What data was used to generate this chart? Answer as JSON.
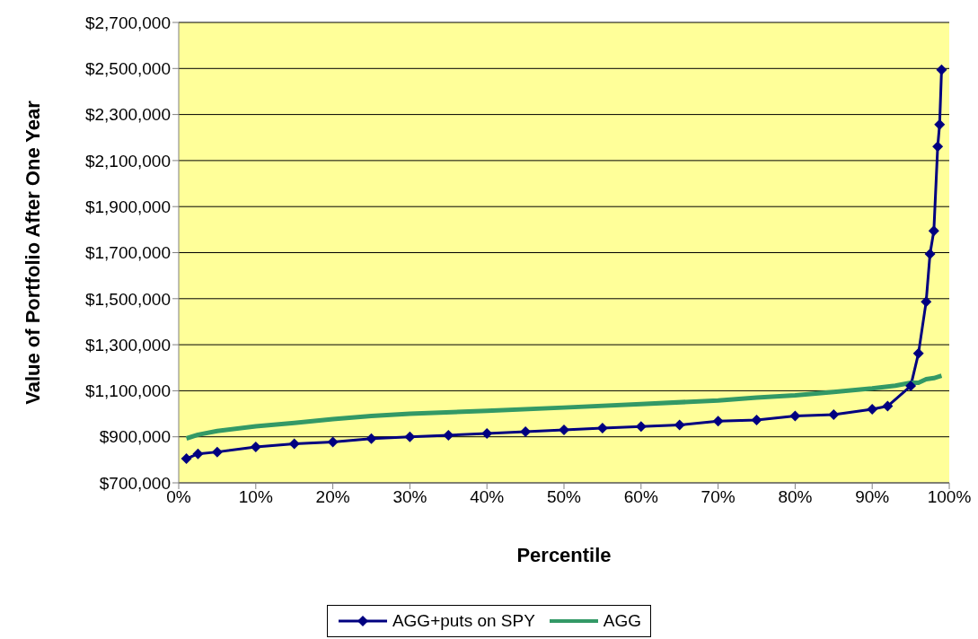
{
  "chart_data": {
    "type": "line",
    "xlabel": "Percentile",
    "ylabel": "Value of Portfolio After One Year",
    "xlim": [
      0,
      100
    ],
    "xticks": [
      {
        "value": 0,
        "label": "0%"
      },
      {
        "value": 10,
        "label": "10%"
      },
      {
        "value": 20,
        "label": "20%"
      },
      {
        "value": 30,
        "label": "30%"
      },
      {
        "value": 40,
        "label": "40%"
      },
      {
        "value": 50,
        "label": "50%"
      },
      {
        "value": 60,
        "label": "60%"
      },
      {
        "value": 70,
        "label": "70%"
      },
      {
        "value": 80,
        "label": "80%"
      },
      {
        "value": 90,
        "label": "90%"
      },
      {
        "value": 100,
        "label": "100%"
      }
    ],
    "ylim": [
      700000,
      2700000
    ],
    "yticks": [
      {
        "value": 700000,
        "label": "$700,000"
      },
      {
        "value": 900000,
        "label": "$900,000"
      },
      {
        "value": 1100000,
        "label": "$1,100,000"
      },
      {
        "value": 1300000,
        "label": "$1,300,000"
      },
      {
        "value": 1500000,
        "label": "$1,500,000"
      },
      {
        "value": 1700000,
        "label": "$1,700,000"
      },
      {
        "value": 1900000,
        "label": "$1,900,000"
      },
      {
        "value": 2100000,
        "label": "$2,100,000"
      },
      {
        "value": 2300000,
        "label": "$2,300,000"
      },
      {
        "value": 2500000,
        "label": "$2,500,000"
      },
      {
        "value": 2700000,
        "label": "$2,700,000"
      }
    ],
    "grid": "y",
    "legend": "bottom",
    "series": [
      {
        "name": "AGG+puts on SPY",
        "color": "#000080",
        "marker": "diamond",
        "x": [
          1,
          2.5,
          5,
          10,
          15,
          20,
          25,
          30,
          35,
          40,
          45,
          50,
          55,
          60,
          65,
          70,
          75,
          80,
          85,
          90,
          92,
          95,
          96,
          97,
          97.5,
          98,
          98.5,
          98.75,
          99
        ],
        "values": [
          805000,
          826000,
          834000,
          856000,
          870000,
          877000,
          892000,
          900000,
          907000,
          914000,
          922000,
          930000,
          938000,
          945000,
          951000,
          968000,
          973000,
          990000,
          996000,
          1020000,
          1033000,
          1121000,
          1262000,
          1487000,
          1694000,
          1795000,
          2161000,
          2257000,
          2494000
        ]
      },
      {
        "name": "AGG",
        "color": "#339966",
        "marker": "none",
        "x": [
          1,
          2.5,
          5,
          10,
          15,
          20,
          25,
          30,
          40,
          50,
          60,
          70,
          75,
          80,
          85,
          90,
          93,
          95,
          96,
          97,
          98,
          99
        ],
        "values": [
          893000,
          909000,
          925000,
          946000,
          960000,
          977000,
          990000,
          1000000,
          1013000,
          1027000,
          1042000,
          1058000,
          1070000,
          1080000,
          1095000,
          1110000,
          1122000,
          1135000,
          1135000,
          1150000,
          1155000,
          1165000
        ]
      }
    ]
  }
}
